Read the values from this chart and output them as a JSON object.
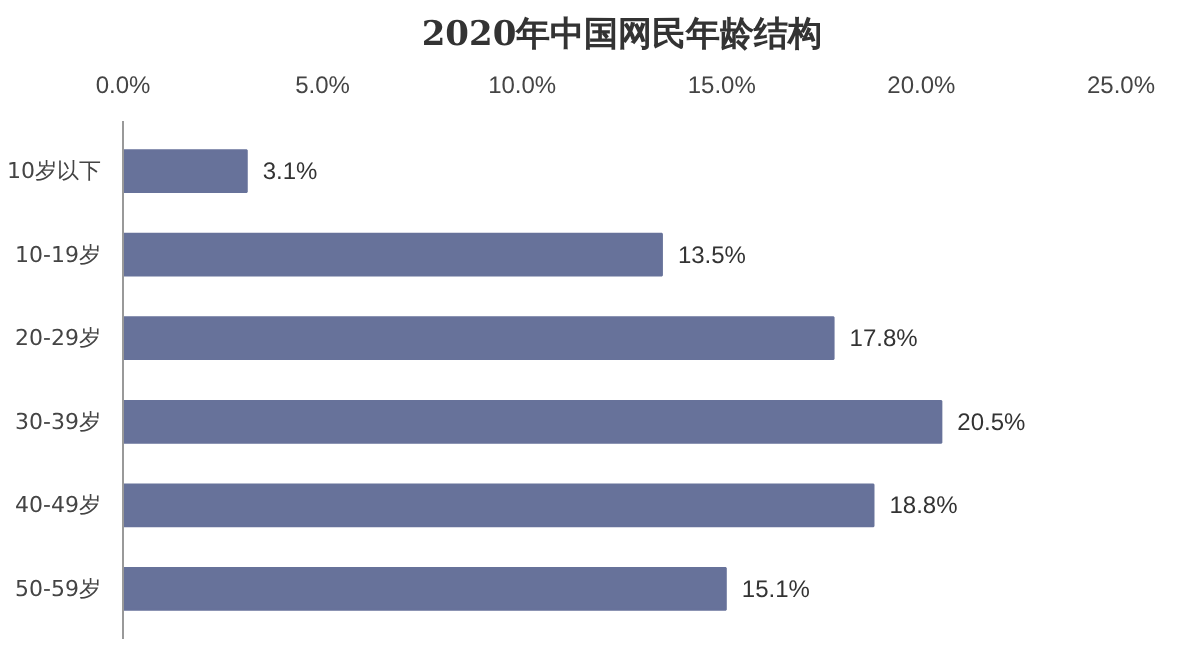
{
  "chart_data": {
    "type": "bar",
    "orientation": "horizontal",
    "title": "2020年中国网民年龄结构",
    "categories": [
      "10岁以下",
      "10-19岁",
      "20-29岁",
      "30-39岁",
      "40-49岁",
      "50-59岁"
    ],
    "values": [
      3.1,
      13.5,
      17.8,
      20.5,
      18.8,
      15.1
    ],
    "value_labels": [
      "3.1%",
      "13.5%",
      "17.8%",
      "20.5%",
      "18.8%",
      "15.1%"
    ],
    "color": "#67729a",
    "xlim": [
      0,
      25
    ],
    "xticks": [
      {
        "value": 0,
        "label": "0.0%"
      },
      {
        "value": 5,
        "label": "5.0%"
      },
      {
        "value": 10,
        "label": "10.0%"
      },
      {
        "value": 15,
        "label": "15.0%"
      },
      {
        "value": 20,
        "label": "20.0%"
      },
      {
        "value": 25,
        "label": "25.0%"
      }
    ],
    "grid": false
  }
}
